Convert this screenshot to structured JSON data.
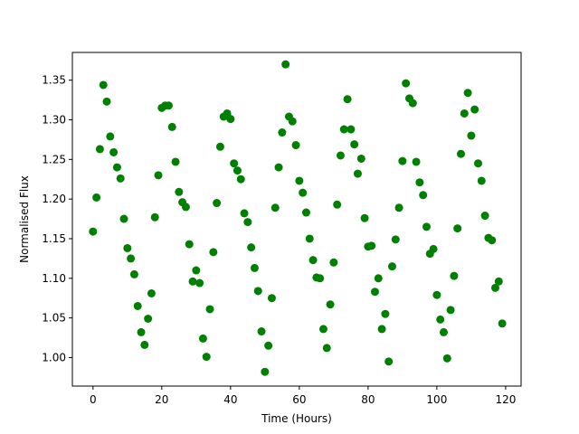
{
  "chart_data": {
    "type": "scatter",
    "xlabel": "Time (Hours)",
    "ylabel": "Normalised Flux",
    "xlim": [
      -6,
      124.5
    ],
    "ylim": [
      0.964,
      1.385
    ],
    "xticks": [
      0,
      20,
      40,
      60,
      80,
      100,
      120
    ],
    "xtick_labels": [
      "0",
      "20",
      "40",
      "60",
      "80",
      "100",
      "120"
    ],
    "yticks": [
      1.0,
      1.05,
      1.1,
      1.15,
      1.2,
      1.25,
      1.3,
      1.35
    ],
    "ytick_labels": [
      "1.00",
      "1.05",
      "1.10",
      "1.15",
      "1.20",
      "1.25",
      "1.30",
      "1.35"
    ],
    "grid": false,
    "marker_color": "#008000",
    "series": [
      {
        "x": [
          0,
          1,
          2,
          3,
          4,
          5,
          6,
          7,
          8,
          9,
          10,
          11,
          12,
          13,
          14,
          15,
          16,
          17,
          18,
          19,
          20,
          21,
          22,
          23,
          24,
          25,
          26,
          27,
          28,
          29,
          30,
          31,
          32,
          33,
          34,
          35,
          36,
          37,
          38,
          39,
          40,
          41,
          42,
          43,
          44,
          45,
          46,
          47,
          48,
          49,
          50,
          51,
          52,
          53,
          54,
          55,
          56,
          57,
          58,
          59,
          60,
          61,
          62,
          63,
          64,
          65,
          66,
          67,
          68,
          69,
          70,
          71,
          72,
          73,
          74,
          75,
          76,
          77,
          78,
          79,
          80,
          81,
          82,
          83,
          84,
          85,
          86,
          87,
          88,
          89,
          90,
          91,
          92,
          93,
          94,
          95,
          96,
          97,
          98,
          99,
          100,
          101,
          102,
          103,
          104,
          105,
          106,
          107,
          108,
          109,
          110,
          111,
          112,
          113,
          114,
          115,
          116,
          117,
          118,
          119
        ],
        "y": [
          1.159,
          1.202,
          1.263,
          1.344,
          1.323,
          1.279,
          1.259,
          1.24,
          1.226,
          1.175,
          1.138,
          1.125,
          1.105,
          1.065,
          1.032,
          1.016,
          1.049,
          1.081,
          1.177,
          1.23,
          1.315,
          1.318,
          1.318,
          1.291,
          1.247,
          1.209,
          1.196,
          1.19,
          1.143,
          1.096,
          1.11,
          1.094,
          1.024,
          1.001,
          1.061,
          1.133,
          1.195,
          1.266,
          1.304,
          1.308,
          1.301,
          1.245,
          1.236,
          1.225,
          1.182,
          1.171,
          1.139,
          1.113,
          1.084,
          1.033,
          0.982,
          1.015,
          1.075,
          1.189,
          1.24,
          1.284,
          1.37,
          1.304,
          1.298,
          1.268,
          1.223,
          1.208,
          1.183,
          1.15,
          1.123,
          1.101,
          1.1,
          1.036,
          1.012,
          1.067,
          1.12,
          1.193,
          1.255,
          1.288,
          1.326,
          1.288,
          1.269,
          1.232,
          1.251,
          1.176,
          1.14,
          1.141,
          1.083,
          1.1,
          1.036,
          1.055,
          0.995,
          1.115,
          1.149,
          1.189,
          1.248,
          1.346,
          1.327,
          1.321,
          1.247,
          1.221,
          1.205,
          1.165,
          1.131,
          1.137,
          1.079,
          1.048,
          1.032,
          0.999,
          1.06,
          1.103,
          1.163,
          1.257,
          1.308,
          1.334,
          1.28,
          1.313,
          1.245,
          1.223,
          1.179,
          1.151,
          1.148,
          1.088,
          1.096,
          1.043
        ]
      }
    ]
  }
}
